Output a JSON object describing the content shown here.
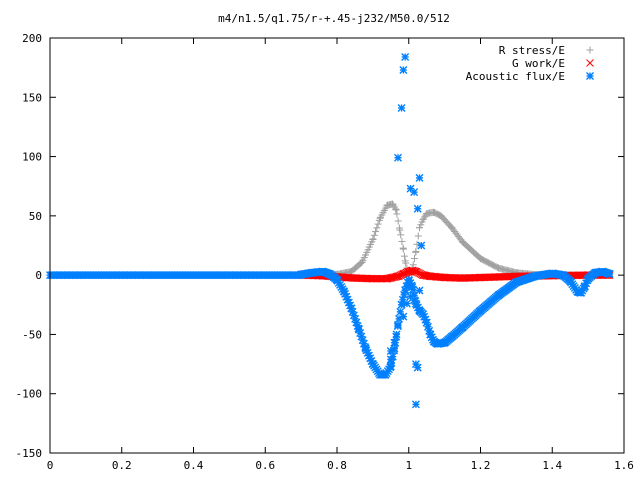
{
  "chart_data": {
    "type": "scatter",
    "title": "m4/n1.5/q1.75/r-+.45-j232/M50.0/512",
    "xlabel": "",
    "ylabel": "",
    "xlim": [
      0,
      1.6
    ],
    "ylim": [
      -150,
      200
    ],
    "x_ticks": [
      "0",
      "0.2",
      "0.4",
      "0.6",
      "0.8",
      "1",
      "1.2",
      "1.4",
      "1.6"
    ],
    "y_ticks": [
      "-150",
      "-100",
      "-50",
      "0",
      "50",
      "100",
      "150",
      "200"
    ],
    "grid": false,
    "legend_position": "top-right",
    "series": [
      {
        "name": "R stress/E",
        "marker": "+",
        "color": "#a0a0a0",
        "points": [
          [
            0.75,
            0.1
          ],
          [
            0.8,
            0.6
          ],
          [
            0.84,
            3
          ],
          [
            0.87,
            11
          ],
          [
            0.9,
            30
          ],
          [
            0.92,
            48
          ],
          [
            0.94,
            59
          ],
          [
            0.955,
            60
          ],
          [
            0.965,
            55
          ],
          [
            0.975,
            38
          ],
          [
            0.985,
            22
          ],
          [
            0.99,
            12
          ],
          [
            1.0,
            0
          ],
          [
            1.01,
            5
          ],
          [
            1.02,
            20
          ],
          [
            1.03,
            40
          ],
          [
            1.04,
            47
          ],
          [
            1.05,
            52
          ],
          [
            1.07,
            53
          ],
          [
            1.09,
            50
          ],
          [
            1.12,
            40
          ],
          [
            1.15,
            28
          ],
          [
            1.2,
            14
          ],
          [
            1.25,
            6
          ],
          [
            1.3,
            2
          ],
          [
            1.35,
            0.5
          ],
          [
            1.4,
            0.2
          ],
          [
            1.5,
            0.05
          ],
          [
            1.56,
            0
          ]
        ]
      },
      {
        "name": "G work/E",
        "marker": "x",
        "color": "#ff0000",
        "points": [
          [
            0.7,
            0
          ],
          [
            0.76,
            -0.5
          ],
          [
            0.8,
            -1.5
          ],
          [
            0.85,
            -2.5
          ],
          [
            0.9,
            -3
          ],
          [
            0.94,
            -3
          ],
          [
            0.97,
            -1
          ],
          [
            0.985,
            1
          ],
          [
            1.0,
            3
          ],
          [
            1.01,
            4
          ],
          [
            1.02,
            3
          ],
          [
            1.04,
            0
          ],
          [
            1.06,
            -1
          ],
          [
            1.1,
            -2
          ],
          [
            1.15,
            -2.5
          ],
          [
            1.2,
            -2
          ],
          [
            1.3,
            -1
          ],
          [
            1.4,
            -0.5
          ],
          [
            1.5,
            0
          ],
          [
            1.56,
            0
          ]
        ]
      },
      {
        "name": "Acoustic flux/E",
        "marker": "*",
        "color": "#0080ff",
        "points": [
          [
            0.7,
            0.5
          ],
          [
            0.73,
            2
          ],
          [
            0.76,
            3
          ],
          [
            0.78,
            1
          ],
          [
            0.8,
            -4
          ],
          [
            0.82,
            -14
          ],
          [
            0.84,
            -28
          ],
          [
            0.86,
            -45
          ],
          [
            0.88,
            -62
          ],
          [
            0.9,
            -75
          ],
          [
            0.92,
            -84
          ],
          [
            0.935,
            -84
          ],
          [
            0.95,
            -77
          ],
          [
            0.96,
            -62
          ],
          [
            0.97,
            -42
          ],
          [
            0.98,
            -25
          ],
          [
            0.99,
            -13
          ],
          [
            1.0,
            -4
          ],
          [
            1.01,
            -10
          ],
          [
            1.02,
            -24
          ],
          [
            1.03,
            -30
          ],
          [
            1.04,
            -33
          ],
          [
            1.05,
            -40
          ],
          [
            1.06,
            -50
          ],
          [
            1.07,
            -56
          ],
          [
            1.08,
            -58
          ],
          [
            1.1,
            -57
          ],
          [
            1.12,
            -52
          ],
          [
            1.15,
            -44
          ],
          [
            1.2,
            -30
          ],
          [
            1.25,
            -17
          ],
          [
            1.3,
            -6
          ],
          [
            1.35,
            -1
          ],
          [
            1.4,
            1.5
          ],
          [
            1.43,
            0
          ],
          [
            1.45,
            -5
          ],
          [
            1.47,
            -14
          ],
          [
            1.48,
            -15
          ],
          [
            1.49,
            -10
          ],
          [
            1.5,
            -3
          ],
          [
            1.52,
            2
          ],
          [
            1.54,
            3
          ],
          [
            1.56,
            1
          ],
          [
            0.95,
            -71
          ],
          [
            0.95,
            -64
          ],
          [
            0.96,
            -57
          ],
          [
            0.965,
            -52
          ],
          [
            0.985,
            -35
          ],
          [
            0.995,
            -24
          ],
          [
            1.005,
            -18
          ],
          [
            1.015,
            -21
          ],
          [
            0.97,
            99
          ],
          [
            0.98,
            141
          ],
          [
            0.985,
            173
          ],
          [
            0.99,
            184
          ],
          [
            1.005,
            73
          ],
          [
            1.015,
            70
          ],
          [
            1.02,
            -75
          ],
          [
            1.025,
            -78
          ],
          [
            1.02,
            -109
          ],
          [
            1.03,
            82
          ],
          [
            1.025,
            56
          ],
          [
            1.035,
            25
          ],
          [
            1.03,
            -13
          ]
        ]
      }
    ]
  }
}
